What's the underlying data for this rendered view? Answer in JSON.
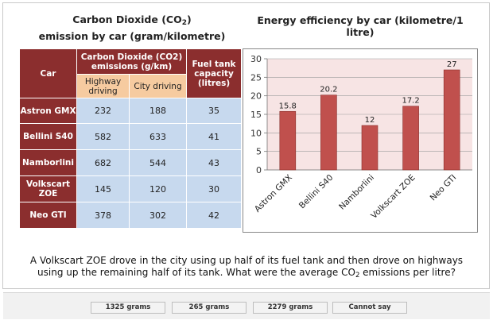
{
  "table": {
    "title_line1_pre": "Carbon Dioxide (CO",
    "title_line1_sub": "2",
    "title_line1_post": ")",
    "title_line2": "emission by car (gram/kilometre)",
    "col_car": "Car",
    "col_co2": "Carbon Dioxide (CO2) emissions (g/km)",
    "col_highway": "Highway driving",
    "col_city": "City driving",
    "col_fuel": "Fuel tank capacity (litres)",
    "rows": [
      {
        "car": "Astron GMX",
        "highway": "232",
        "city": "188",
        "fuel": "35"
      },
      {
        "car": "Bellini S40",
        "highway": "582",
        "city": "633",
        "fuel": "41"
      },
      {
        "car": "Namborlini",
        "highway": "682",
        "city": "544",
        "fuel": "43"
      },
      {
        "car": "Volkscart ZOE",
        "highway": "145",
        "city": "120",
        "fuel": "30"
      },
      {
        "car": "Neo GTI",
        "highway": "378",
        "city": "302",
        "fuel": "42"
      }
    ]
  },
  "chart_data": {
    "type": "bar",
    "title": "Energy efficiency by car (kilometre/1 litre)",
    "categories": [
      "Astron GMX",
      "Bellini S40",
      "Namborlini",
      "Volkscart ZOE",
      "Neo GTI"
    ],
    "values": [
      15.8,
      20.2,
      12,
      17.2,
      27
    ],
    "value_labels": [
      "15.8",
      "20.2",
      "12",
      "17.2",
      "27"
    ],
    "ylim": [
      0,
      30
    ],
    "yticks": [
      0,
      5,
      10,
      15,
      20,
      25,
      30
    ],
    "xlabel": "",
    "ylabel": "",
    "grid": true,
    "bar_color": "#c0504d",
    "plot_bg": "#f7e4e4"
  },
  "question": {
    "text_pre": "A Volkscart ZOE drove in the city using up half of its fuel tank and then drove on highways using up the remaining half of its tank. What were the average CO",
    "text_sub": "2",
    "text_post": " emissions per litre?"
  },
  "answers": [
    "1325 grams",
    "265 grams",
    "2279 grams",
    "Cannot say"
  ]
}
